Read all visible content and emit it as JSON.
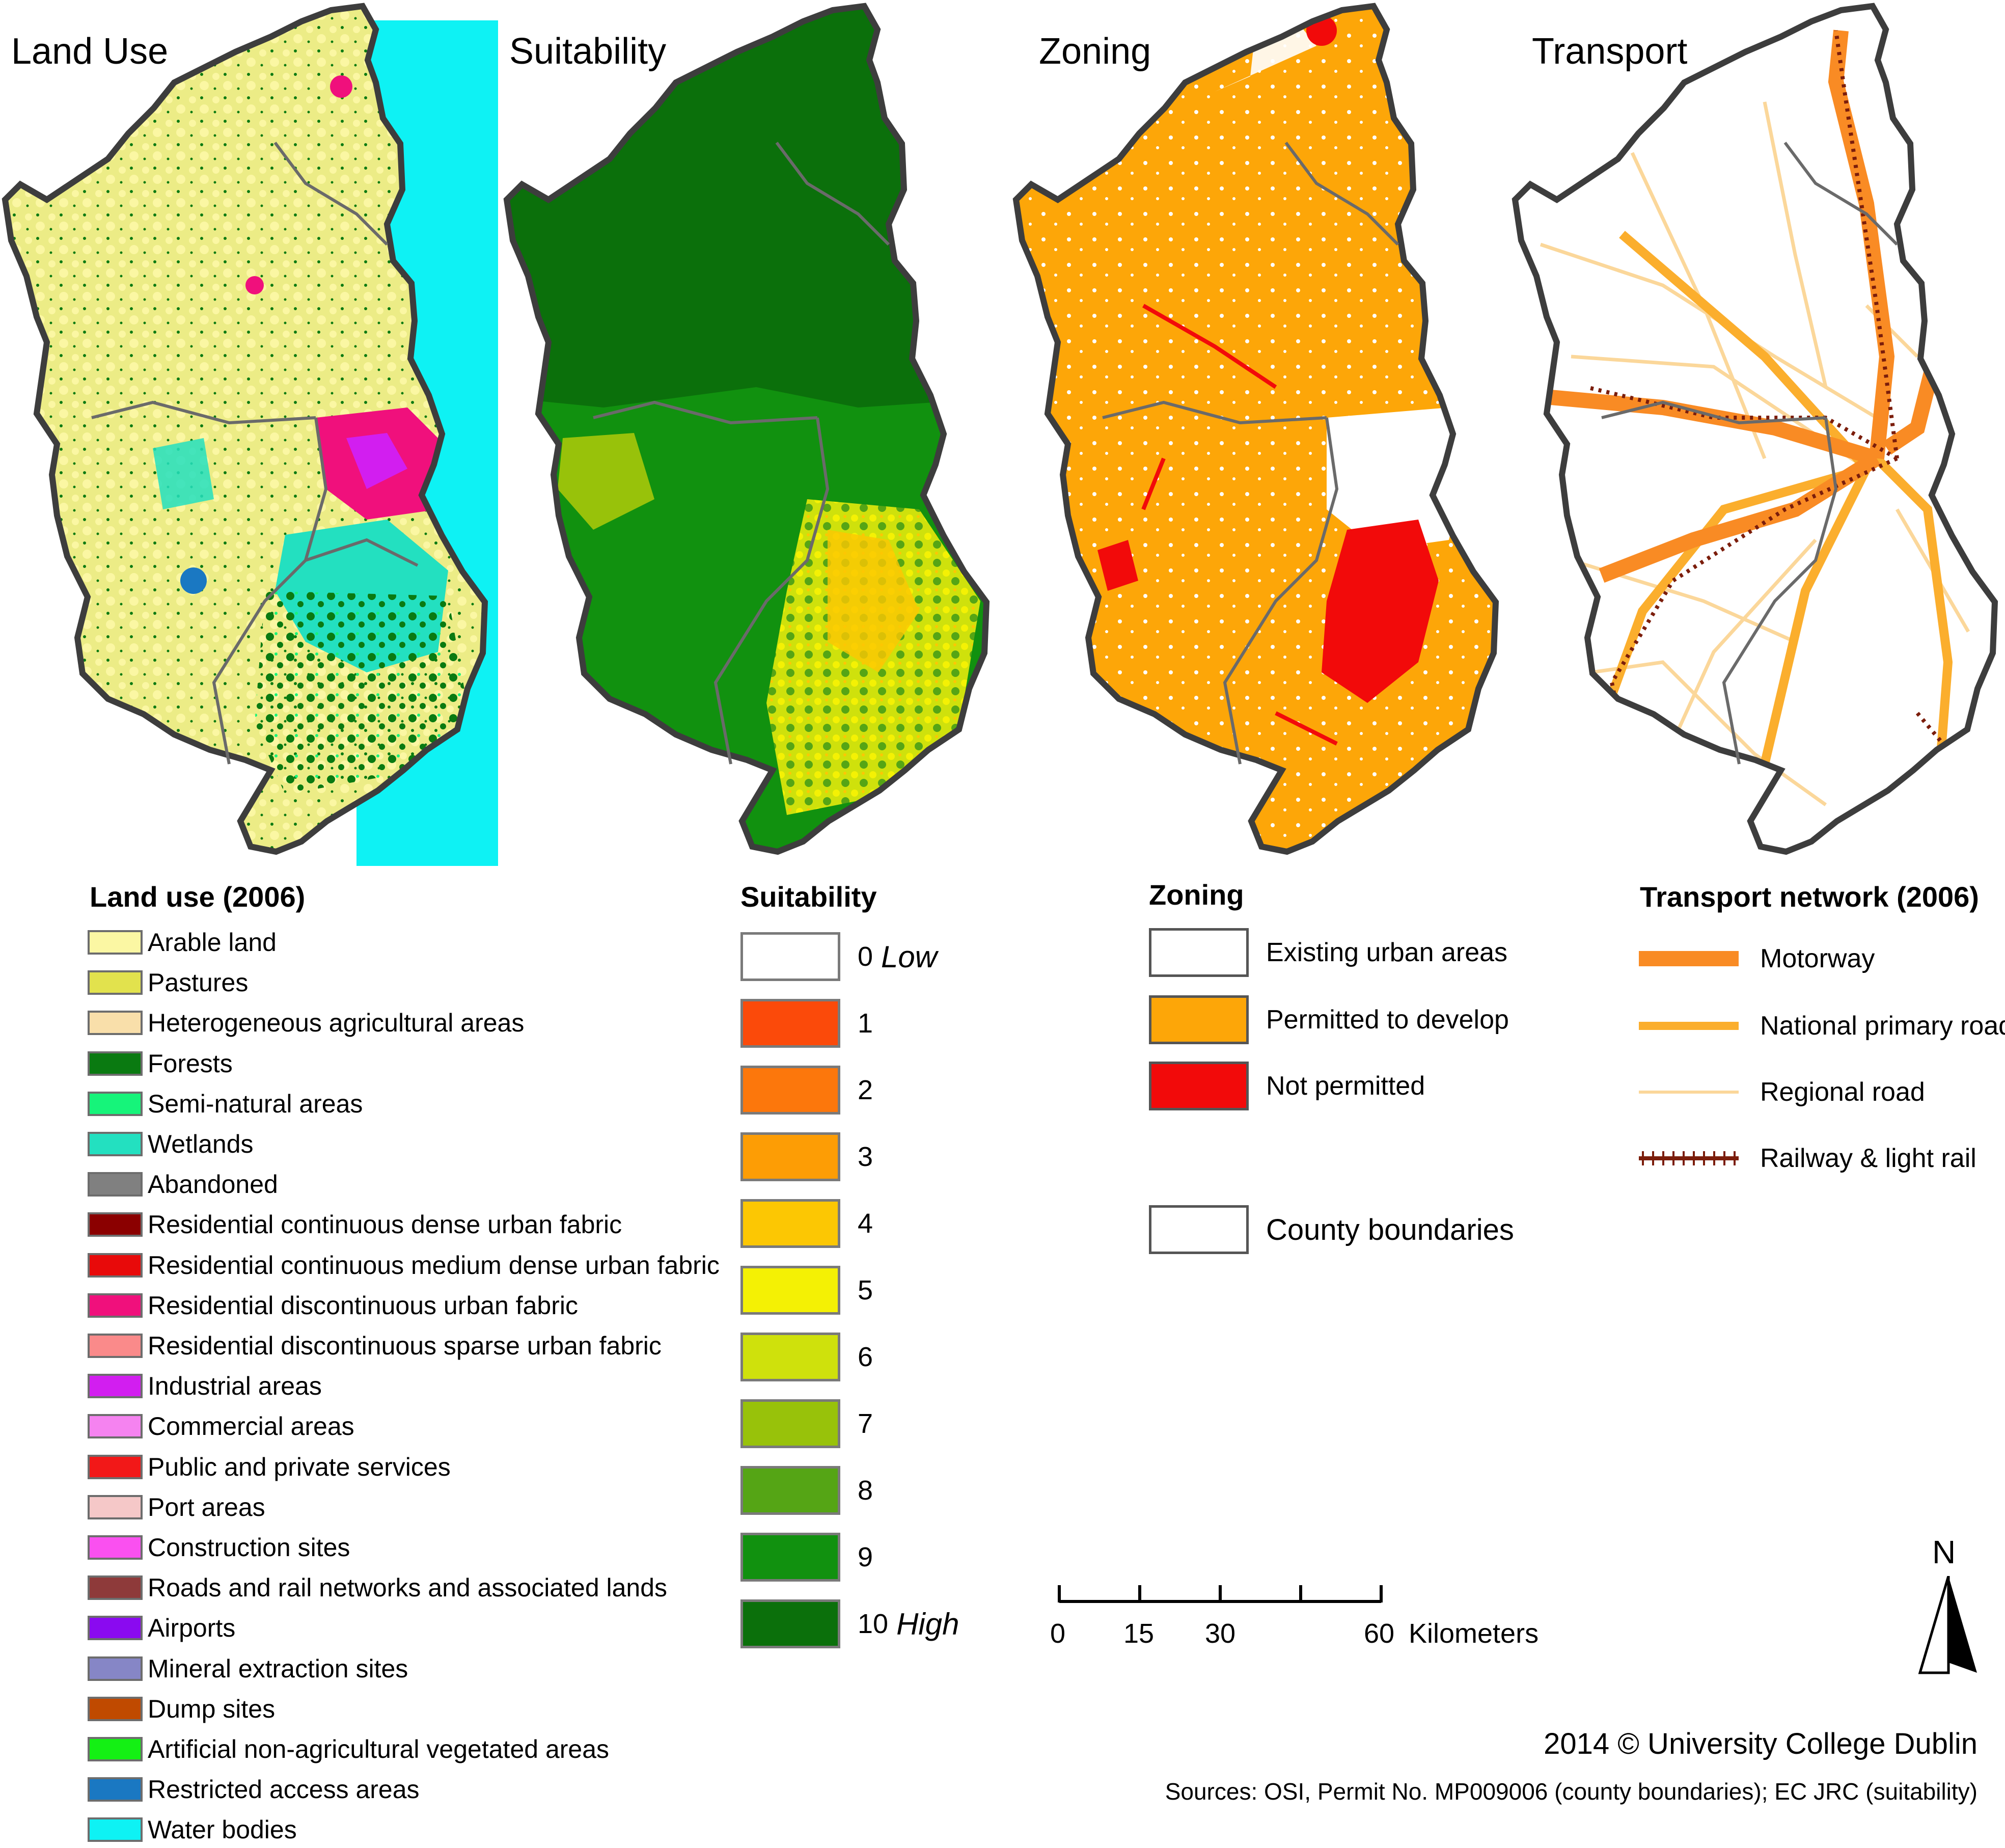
{
  "maps": {
    "land_use_title": "Land Use",
    "suitability_title": "Suitability",
    "zoning_title": "Zoning",
    "transport_title": "Transport"
  },
  "land_use_legend": {
    "title": "Land use (2006)",
    "items": [
      {
        "label": "Arable land",
        "color": "#fbf7a3"
      },
      {
        "label": "Pastures",
        "color": "#e2e24d"
      },
      {
        "label": "Heterogeneous agricultural areas",
        "color": "#f9dfaa"
      },
      {
        "label": "Forests",
        "color": "#0a7a11"
      },
      {
        "label": "Semi-natural areas",
        "color": "#16f47a"
      },
      {
        "label": "Wetlands",
        "color": "#23e0c0"
      },
      {
        "label": "Abandoned",
        "color": "#808080"
      },
      {
        "label": "Residential continuous dense urban fabric",
        "color": "#8b0000"
      },
      {
        "label": "Residential continuous medium dense urban fabric",
        "color": "#e80a0a"
      },
      {
        "label": "Residential discontinuous urban fabric",
        "color": "#f0107c"
      },
      {
        "label": "Residential discontinuous sparse urban fabric",
        "color": "#fa8a8a"
      },
      {
        "label": "Industrial areas",
        "color": "#d21ef0"
      },
      {
        "label": "Commercial areas",
        "color": "#f583f0"
      },
      {
        "label": "Public and private services",
        "color": "#f21818"
      },
      {
        "label": "Port areas",
        "color": "#f5c8c8"
      },
      {
        "label": "Construction sites",
        "color": "#fa50f0"
      },
      {
        "label": "Roads and rail networks and associated lands",
        "color": "#8e3a3a"
      },
      {
        "label": "Airports",
        "color": "#8a0af0"
      },
      {
        "label": "Mineral extraction sites",
        "color": "#8686c6"
      },
      {
        "label": "Dump sites",
        "color": "#c04a00"
      },
      {
        "label": "Artificial non-agricultural vegetated areas",
        "color": "#14f014"
      },
      {
        "label": "Restricted access areas",
        "color": "#1a78c2"
      },
      {
        "label": "Water bodies",
        "color": "#0ef2f4"
      }
    ]
  },
  "suitability_legend": {
    "title": "Suitability",
    "items": [
      {
        "value": "0",
        "word": "Low",
        "color": "#ffffff"
      },
      {
        "value": "1",
        "word": "",
        "color": "#fb4a0a"
      },
      {
        "value": "2",
        "word": "",
        "color": "#fc770c"
      },
      {
        "value": "3",
        "word": "",
        "color": "#fd9d05"
      },
      {
        "value": "4",
        "word": "",
        "color": "#fcc703"
      },
      {
        "value": "5",
        "word": "",
        "color": "#f4f104"
      },
      {
        "value": "6",
        "word": "",
        "color": "#cfe10c"
      },
      {
        "value": "7",
        "word": "",
        "color": "#98c20a"
      },
      {
        "value": "8",
        "word": "",
        "color": "#55a515"
      },
      {
        "value": "9",
        "word": "",
        "color": "#11910f"
      },
      {
        "value": "10",
        "word": "High",
        "color": "#0b700b"
      }
    ]
  },
  "zoning_legend": {
    "title": "Zoning",
    "items": [
      {
        "label": "Existing urban areas",
        "color": "#ffffff"
      },
      {
        "label": "Permitted to develop",
        "color": "#fda608"
      },
      {
        "label": "Not permitted",
        "color": "#f20a0a"
      }
    ],
    "county_boundaries": "County boundaries"
  },
  "transport_legend": {
    "title": "Transport network (2006)",
    "items": [
      {
        "label": "Motorway",
        "color": "#f98b24"
      },
      {
        "label": "National primary road",
        "color": "#fbae2d"
      },
      {
        "label": "Regional road",
        "color": "#fbd79a"
      },
      {
        "label": "Railway & light rail",
        "color": "#7b1d0b"
      }
    ]
  },
  "scale_bar": {
    "ticks": [
      "0",
      "15",
      "30",
      "60"
    ],
    "unit": "Kilometers"
  },
  "north_arrow": "N",
  "credit": "2014 © University College Dublin",
  "sources": "Sources: OSI, Permit No. MP009006 (county boundaries); EC JRC (suitability)"
}
